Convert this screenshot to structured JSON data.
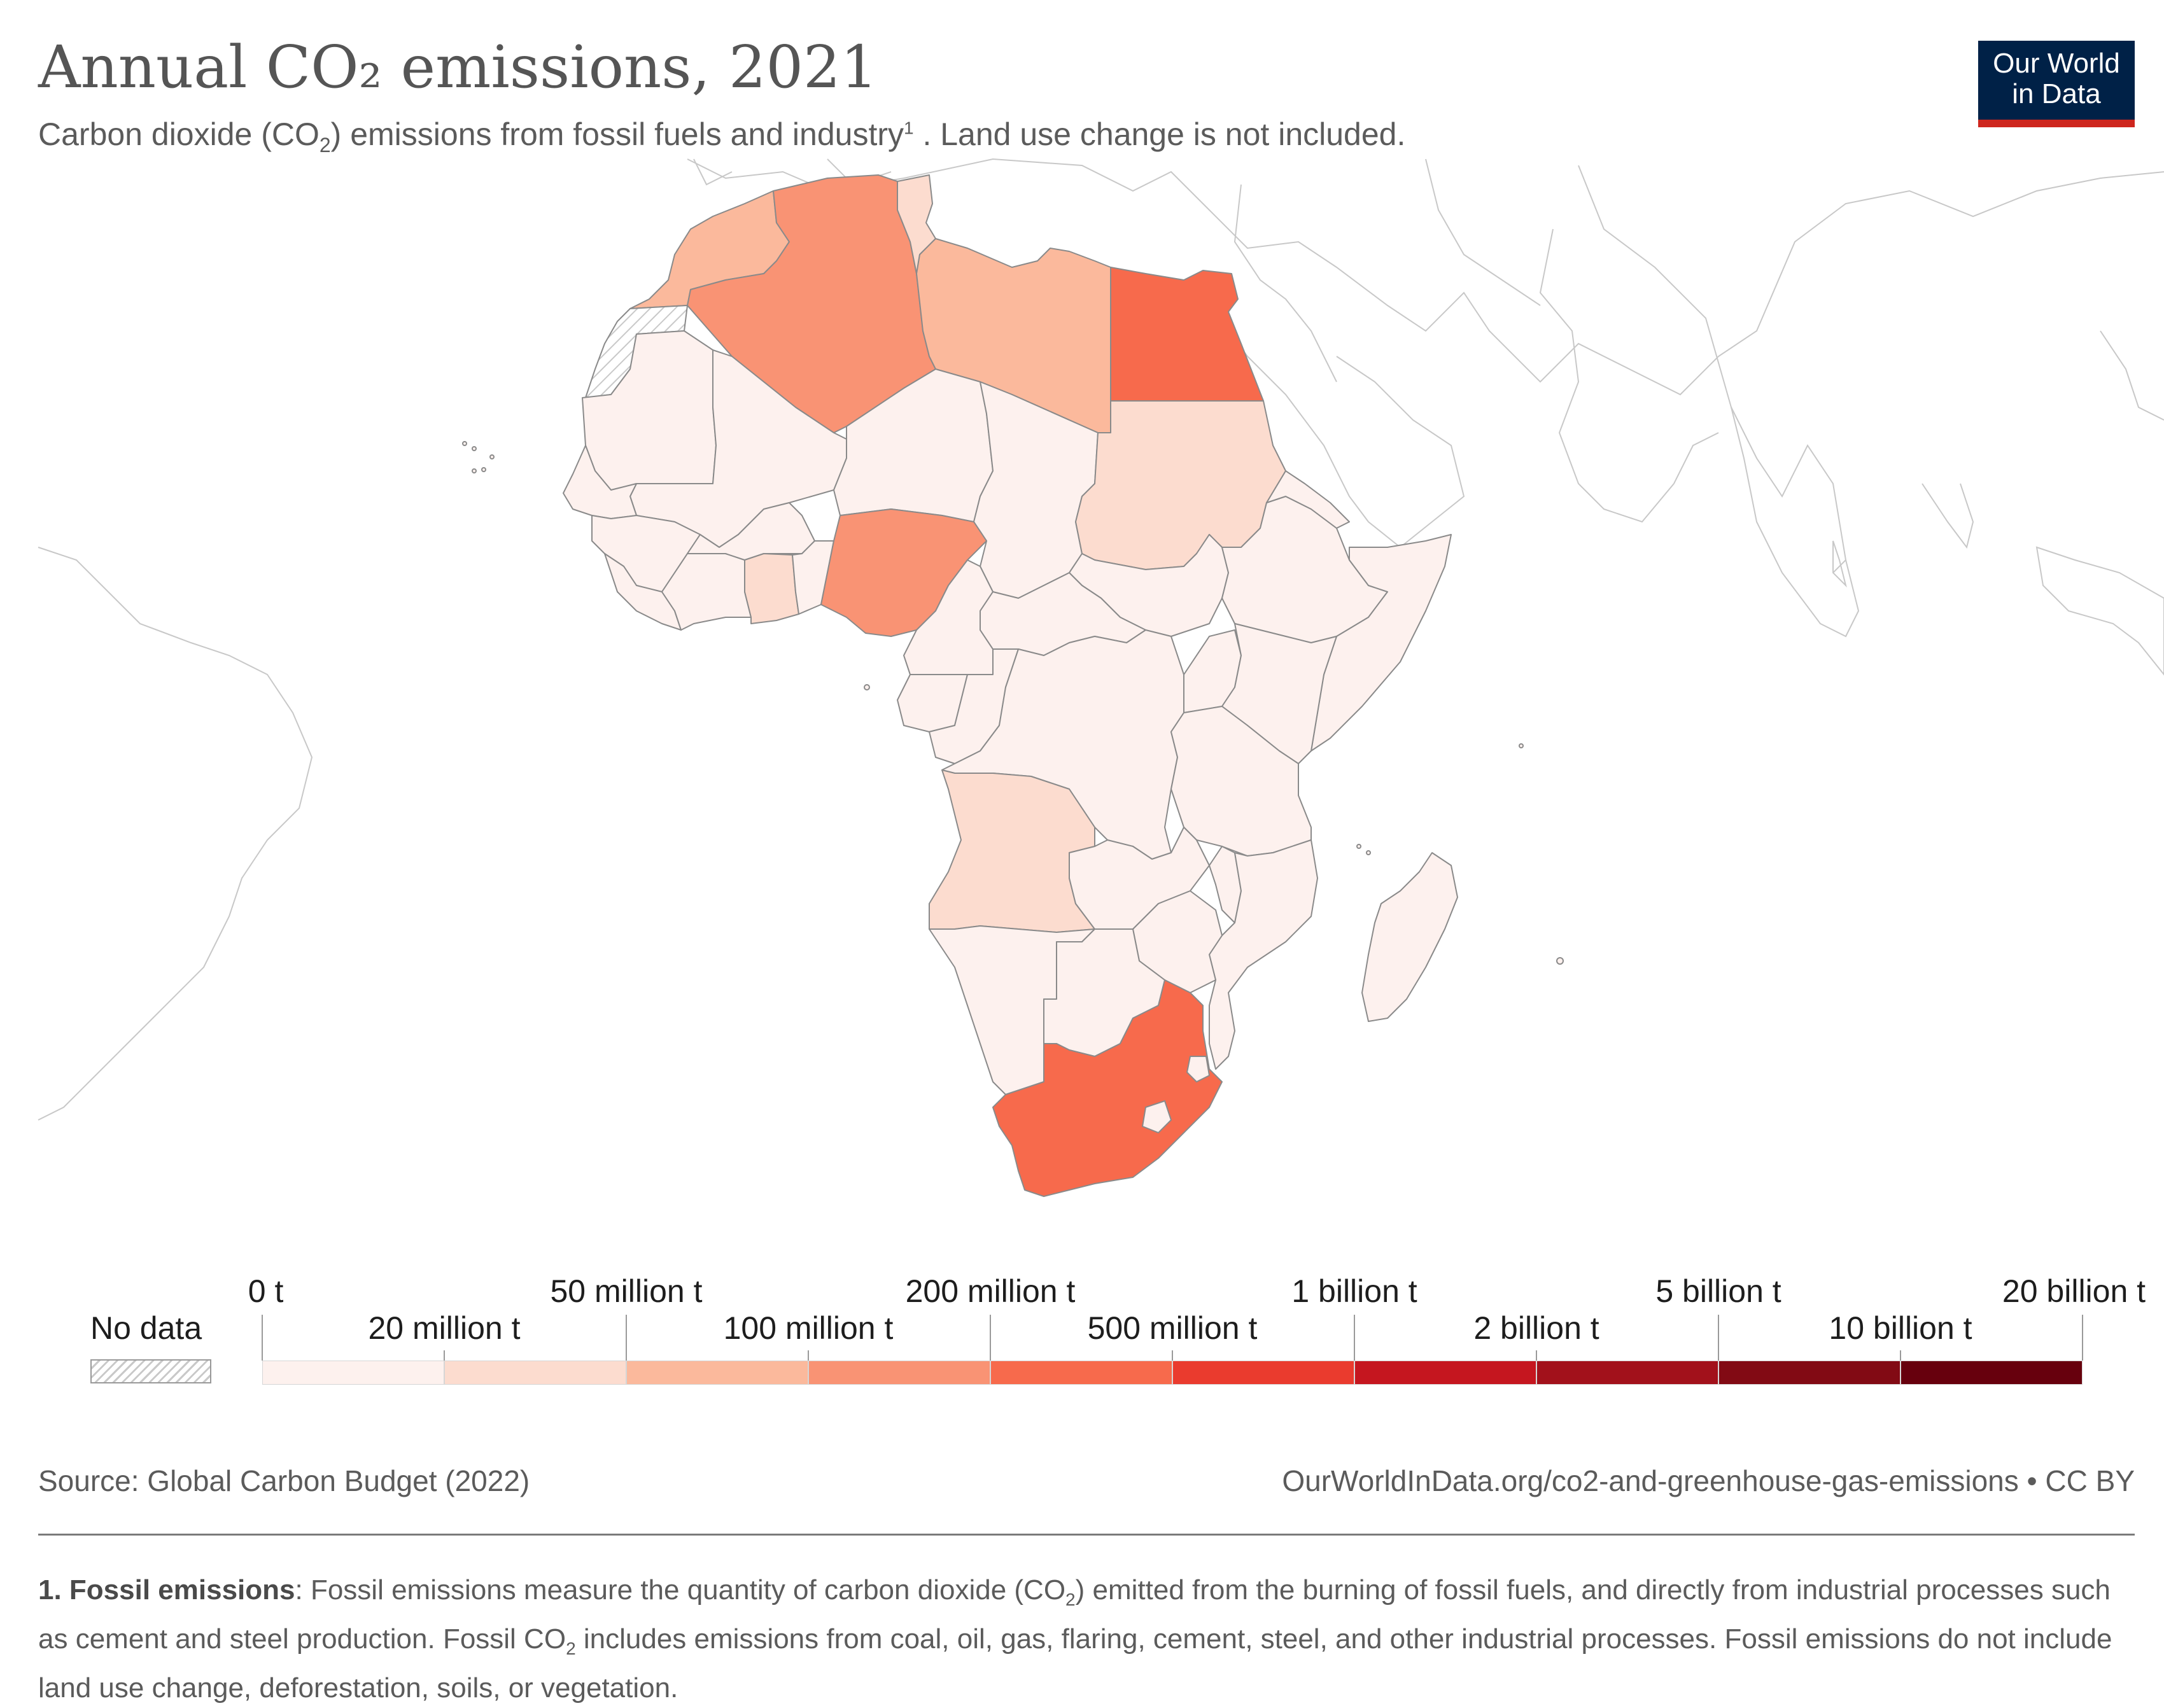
{
  "header": {
    "title": "Annual CO₂ emissions, 2021",
    "subtitle_pre": "Carbon dioxide (CO",
    "subtitle_sub": "2",
    "subtitle_mid": ") emissions from fossil fuels and industry",
    "subtitle_sup": "1",
    "subtitle_post": " . Land use change is not included.",
    "logo_line1": "Our World",
    "logo_line2": "in Data"
  },
  "colors": {
    "logo_bg": "#002147",
    "logo_accent": "#ce261e",
    "border": "#8a8a8a",
    "background_land": "#ffffff",
    "background_outline": "#c8c8c8"
  },
  "legend": {
    "no_data_label": "No data",
    "top_labels": [
      "0 t",
      "50 million t",
      "200 million t",
      "1 billion t",
      "5 billion t",
      "20 billion t"
    ],
    "bottom_labels": [
      "20 million t",
      "100 million t",
      "500 million t",
      "2 billion t",
      "10 billion t"
    ],
    "bins": [
      {
        "from": "0 t",
        "to": "20 million t",
        "color": "#fdf1ee"
      },
      {
        "from": "20 million t",
        "to": "50 million t",
        "color": "#fcdccf"
      },
      {
        "from": "50 million t",
        "to": "100 million t",
        "color": "#fbb99c"
      },
      {
        "from": "100 million t",
        "to": "200 million t",
        "color": "#f99374"
      },
      {
        "from": "200 million t",
        "to": "500 million t",
        "color": "#f76a4c"
      },
      {
        "from": "500 million t",
        "to": "1 billion t",
        "color": "#ea3b2e"
      },
      {
        "from": "1 billion t",
        "to": "2 billion t",
        "color": "#c5161f"
      },
      {
        "from": "2 billion t",
        "to": "5 billion t",
        "color": "#a2111b"
      },
      {
        "from": "5 billion t",
        "to": "10 billion t",
        "color": "#820a14"
      },
      {
        "from": "10 billion t",
        "to": "20 billion t",
        "color": "#67000d"
      }
    ]
  },
  "map": {
    "region": "Africa",
    "year": 2021,
    "countries": [
      {
        "id": "morocco",
        "bin": 2
      },
      {
        "id": "western-sahara",
        "bin": "no-data"
      },
      {
        "id": "algeria",
        "bin": 3
      },
      {
        "id": "tunisia",
        "bin": 1
      },
      {
        "id": "libya",
        "bin": 2
      },
      {
        "id": "egypt",
        "bin": 4
      },
      {
        "id": "mauritania",
        "bin": 0
      },
      {
        "id": "mali",
        "bin": 0
      },
      {
        "id": "niger",
        "bin": 0
      },
      {
        "id": "chad",
        "bin": 0
      },
      {
        "id": "sudan",
        "bin": 1
      },
      {
        "id": "south-sudan",
        "bin": 0
      },
      {
        "id": "ethiopia",
        "bin": 0
      },
      {
        "id": "somalia",
        "bin": 0
      },
      {
        "id": "senegal",
        "bin": 0
      },
      {
        "id": "guinea",
        "bin": 0
      },
      {
        "id": "burkina-faso",
        "bin": 0
      },
      {
        "id": "ghana",
        "bin": 1
      },
      {
        "id": "nigeria",
        "bin": 3
      },
      {
        "id": "cameroon",
        "bin": 0
      },
      {
        "id": "central-african-republic",
        "bin": 0
      },
      {
        "id": "dr-congo",
        "bin": 0
      },
      {
        "id": "kenya",
        "bin": 0
      },
      {
        "id": "tanzania",
        "bin": 0
      },
      {
        "id": "angola",
        "bin": 1
      },
      {
        "id": "zambia",
        "bin": 0
      },
      {
        "id": "mozambique",
        "bin": 0
      },
      {
        "id": "namibia",
        "bin": 0
      },
      {
        "id": "botswana",
        "bin": 0
      },
      {
        "id": "zimbabwe",
        "bin": 0
      },
      {
        "id": "south-africa",
        "bin": 4
      },
      {
        "id": "madagascar",
        "bin": 0
      }
    ]
  },
  "footer": {
    "source": "Source: Global Carbon Budget (2022)",
    "url": "OurWorldInData.org/co2-and-greenhouse-gas-emissions • CC BY",
    "footnote_bold": "1. Fossil emissions",
    "fn_1": ": Fossil emissions measure the quantity of carbon dioxide (CO",
    "fn_2": "2",
    "fn_3": ") emitted from the burning of fossil fuels, and directly from industrial processes such as cement and steel production. Fossil CO",
    "fn_4": "2",
    "fn_5": " includes emissions from coal, oil, gas, flaring, cement, steel, and other industrial processes. Fossil emissions do not include land use change, deforestation, soils, or vegetation."
  }
}
